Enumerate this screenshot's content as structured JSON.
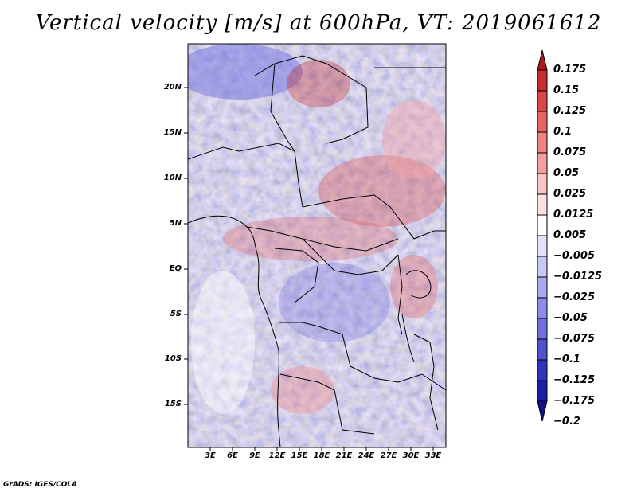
{
  "title": "Vertical velocity [m/s] at 600hPa, VT: 2019061612",
  "latitude_labels": [
    "20N",
    "15N",
    "10N",
    "5N",
    "EQ",
    "5S",
    "10S",
    "15S"
  ],
  "longitude_labels": [
    "3E",
    "6E",
    "9E",
    "12E",
    "15E",
    "18E",
    "21E",
    "24E",
    "27E",
    "30E",
    "33E"
  ],
  "colorbar": {
    "labels": [
      "0.175",
      "0.15",
      "0.125",
      "0.1",
      "0.075",
      "0.05",
      "0.025",
      "0.0125",
      "0.005",
      "−0.005",
      "−0.0125",
      "−0.025",
      "−0.05",
      "−0.075",
      "−0.1",
      "−0.125",
      "−0.175",
      "−0.2"
    ],
    "colors": [
      "#b01919",
      "#c82d2d",
      "#dc4646",
      "#e66464",
      "#f08282",
      "#f5a0a0",
      "#fac3c3",
      "#fde1e1",
      "#ffffff",
      "#e1e1fa",
      "#c8c8f5",
      "#aaaaf0",
      "#8c8ceb",
      "#6e6edc",
      "#5050cd",
      "#3232bb",
      "#1e1ea5",
      "#0f0f8c"
    ],
    "colors_note": "top→bottom"
  },
  "credit": "GrADS: IGES/COLA"
}
